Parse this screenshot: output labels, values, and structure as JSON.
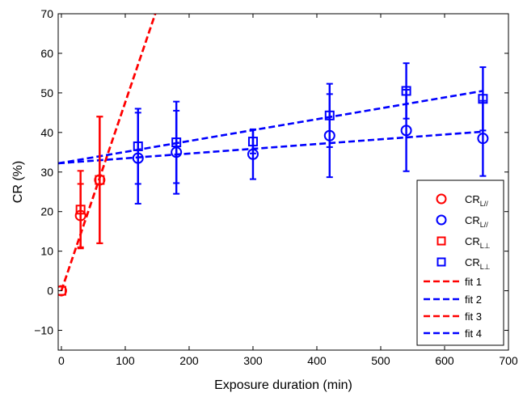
{
  "chart_data": {
    "type": "scatter",
    "xlabel": "Exposure duration (min)",
    "ylabel": "CR (%)",
    "xlim": [
      -5,
      700
    ],
    "ylim": [
      -15,
      70
    ],
    "xticks": [
      0,
      100,
      200,
      300,
      400,
      500,
      600,
      700
    ],
    "yticks": [
      -10,
      0,
      10,
      20,
      30,
      40,
      50,
      60,
      70
    ],
    "xtick_labels": [
      "0",
      "100",
      "200",
      "300",
      "400",
      "500",
      "600",
      "700"
    ],
    "ytick_labels": [
      "−10",
      "0",
      "10",
      "20",
      "30",
      "40",
      "50",
      "60",
      "70"
    ],
    "grid": false,
    "legend_position": "bottom-right",
    "series": [
      {
        "label_main": "CR",
        "label_sub": "L//",
        "marker": "circle",
        "color": "#ff0000",
        "points": [
          {
            "x": 0,
            "y": 0,
            "err": 0
          },
          {
            "x": 30,
            "y": 19,
            "err": 8
          },
          {
            "x": 60,
            "y": 28,
            "err": 16
          }
        ]
      },
      {
        "label_main": "CR",
        "label_sub": "L//",
        "marker": "circle",
        "color": "#0000ff",
        "points": [
          {
            "x": 120,
            "y": 33.5,
            "err": 11.5
          },
          {
            "x": 180,
            "y": 35,
            "err": 10.5
          },
          {
            "x": 300,
            "y": 34.5,
            "err": 6.3
          },
          {
            "x": 420,
            "y": 39.2,
            "err": 10.5
          },
          {
            "x": 540,
            "y": 40.5,
            "err": 10.3
          },
          {
            "x": 660,
            "y": 38.5,
            "err": 9.5
          }
        ]
      },
      {
        "label_main": "CR",
        "label_sub": "L⊥",
        "marker": "square",
        "color": "#ff0000",
        "points": [
          {
            "x": 0,
            "y": 0,
            "err": 0
          },
          {
            "x": 30,
            "y": 20.5,
            "err": 9.8
          },
          {
            "x": 60,
            "y": 28,
            "err": 16
          }
        ]
      },
      {
        "label_main": "CR",
        "label_sub": "L⊥",
        "marker": "square",
        "color": "#0000ff",
        "points": [
          {
            "x": 120,
            "y": 36.5,
            "err": 9.5
          },
          {
            "x": 180,
            "y": 37.5,
            "err": 10.3
          },
          {
            "x": 300,
            "y": 37.7,
            "err": 3
          },
          {
            "x": 420,
            "y": 44.3,
            "err": 8
          },
          {
            "x": 540,
            "y": 50.5,
            "err": 7
          },
          {
            "x": 660,
            "y": 48.5,
            "err": 8
          }
        ]
      }
    ],
    "fits": [
      {
        "name": "fit 1",
        "color": "#ff0000",
        "x": [
          0,
          147
        ],
        "y": [
          0,
          70
        ]
      },
      {
        "name": "fit 2",
        "color": "#0000ff",
        "x": [
          -5,
          660
        ],
        "y": [
          32.2,
          40.2
        ]
      },
      {
        "name": "fit 3",
        "color": "#ff0000",
        "x": [
          0,
          147
        ],
        "y": [
          0,
          70
        ]
      },
      {
        "name": "fit 4",
        "color": "#0000ff",
        "x": [
          -5,
          660
        ],
        "y": [
          32.2,
          50.5
        ]
      }
    ]
  }
}
